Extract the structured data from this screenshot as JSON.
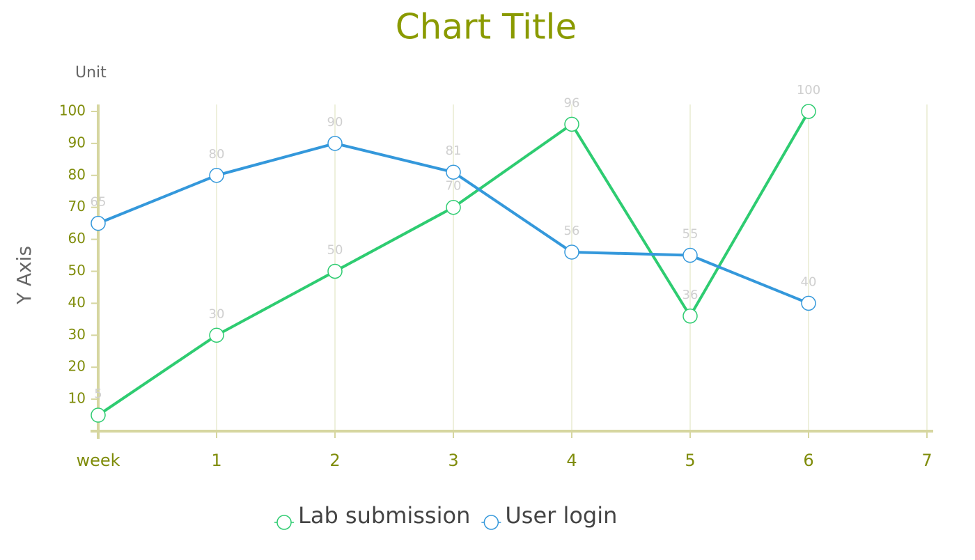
{
  "chart_data": {
    "type": "line",
    "title": "Chart Title",
    "y_unit": "Unit",
    "y_label": "Y Axis",
    "categories": [
      "week",
      "1",
      "2",
      "3",
      "4",
      "5",
      "6",
      "7"
    ],
    "series": [
      {
        "name": "Lab submission",
        "color": "#2ecc71",
        "values": [
          5,
          30,
          50,
          70,
          96,
          36,
          100,
          null
        ]
      },
      {
        "name": "User login",
        "color": "#3498db",
        "values": [
          65,
          80,
          90,
          81,
          56,
          55,
          40,
          null
        ]
      }
    ],
    "ylim": [
      0,
      100
    ],
    "yticks": [
      10,
      20,
      30,
      40,
      50,
      60,
      70,
      80,
      90,
      100
    ],
    "grid": true,
    "legend": "bottom"
  }
}
